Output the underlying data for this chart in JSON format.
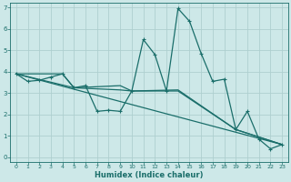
{
  "xlabel": "Humidex (Indice chaleur)",
  "xlim": [
    -0.5,
    23.5
  ],
  "ylim": [
    -0.2,
    7.2
  ],
  "xticks": [
    0,
    1,
    2,
    3,
    4,
    5,
    6,
    7,
    8,
    9,
    10,
    11,
    12,
    13,
    14,
    15,
    16,
    17,
    18,
    19,
    20,
    21,
    22,
    23
  ],
  "yticks": [
    0,
    1,
    2,
    3,
    4,
    5,
    6,
    7
  ],
  "background_color": "#cde8e8",
  "line_color": "#1a6e6a",
  "grid_color": "#aecfcf",
  "series1_x": [
    0,
    1,
    2,
    3,
    4,
    5,
    6,
    7,
    8,
    9,
    10,
    11,
    12,
    13,
    14,
    15,
    16,
    17,
    18,
    19,
    20,
    21,
    22,
    23
  ],
  "series1_y": [
    3.9,
    3.55,
    3.6,
    3.75,
    3.9,
    3.25,
    3.35,
    2.15,
    2.2,
    2.15,
    3.1,
    5.5,
    4.8,
    3.1,
    6.95,
    6.35,
    4.85,
    3.55,
    3.65,
    1.3,
    2.15,
    0.85,
    0.4,
    0.6
  ],
  "series2_x": [
    0,
    23
  ],
  "series2_y": [
    3.9,
    0.6
  ],
  "series3_x": [
    0,
    5,
    9,
    10,
    14,
    19,
    23
  ],
  "series3_y": [
    3.9,
    3.25,
    3.15,
    3.1,
    3.1,
    1.3,
    0.6
  ],
  "series4_x": [
    0,
    4,
    5,
    9,
    10,
    14,
    19,
    23
  ],
  "series4_y": [
    3.9,
    3.9,
    3.25,
    3.35,
    3.1,
    3.15,
    1.3,
    0.6
  ]
}
